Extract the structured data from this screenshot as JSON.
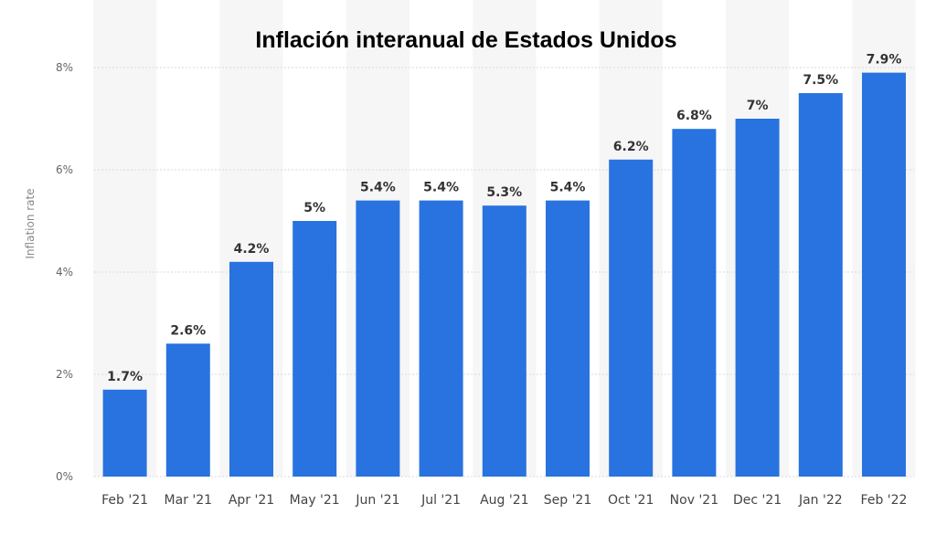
{
  "chart_data": {
    "type": "bar",
    "title": "Inflación interanual de Estados Unidos",
    "xlabel": "",
    "ylabel": "Inflation rate",
    "categories": [
      "Feb '21",
      "Mar '21",
      "Apr '21",
      "May '21",
      "Jun '21",
      "Jul '21",
      "Aug '21",
      "Sep '21",
      "Oct '21",
      "Nov '21",
      "Dec '21",
      "Jan '22",
      "Feb '22"
    ],
    "values": [
      1.7,
      2.6,
      4.2,
      5,
      5.4,
      5.4,
      5.3,
      5.4,
      6.2,
      6.8,
      7,
      7.5,
      7.9
    ],
    "data_labels": [
      "1.7%",
      "2.6%",
      "4.2%",
      "5%",
      "5.4%",
      "5.4%",
      "5.3%",
      "5.4%",
      "6.2%",
      "6.8%",
      "7%",
      "7.5%",
      "7.9%"
    ],
    "ylim": [
      0,
      8
    ],
    "yticks": [
      0,
      2,
      4,
      6,
      8
    ],
    "ytick_labels": [
      "0%",
      "2%",
      "4%",
      "6%",
      "8%"
    ],
    "grid": true,
    "colors": {
      "bar": "#2873e0",
      "band": "#f6f6f6"
    }
  }
}
